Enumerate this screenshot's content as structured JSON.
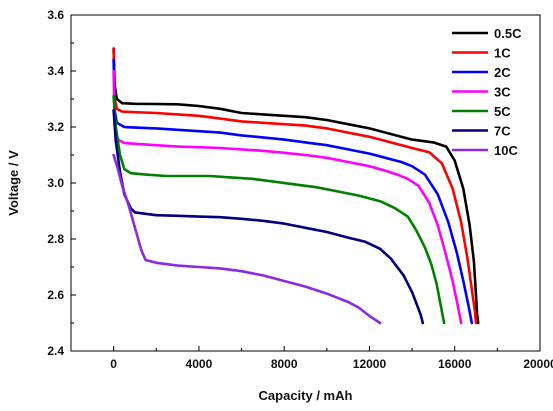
{
  "chart_data": {
    "type": "line",
    "xlabel": "Capacity / mAh",
    "ylabel": "Voltage / V",
    "xlim": [
      -2000,
      20000
    ],
    "ylim": [
      2.4,
      3.6
    ],
    "xticks": [
      0,
      4000,
      8000,
      12000,
      16000,
      20000
    ],
    "yticks": [
      2.4,
      2.6,
      2.8,
      3.0,
      3.2,
      3.4,
      3.6
    ],
    "xtick_labels": [
      "0",
      "4000",
      "8000",
      "12000",
      "16000",
      "20000"
    ],
    "ytick_labels": [
      "2.4",
      "2.6",
      "2.8",
      "3.0",
      "3.2",
      "3.4",
      "3.6"
    ],
    "grid": false,
    "legend_position": "top-right",
    "series": [
      {
        "name": "0.5C",
        "color": "#000000",
        "x": [
          0,
          50,
          150,
          400,
          1000,
          2000,
          3000,
          4000,
          5000,
          6000,
          7000,
          8000,
          9000,
          10000,
          11000,
          12000,
          13000,
          14000,
          15000,
          15600,
          16000,
          16400,
          16700,
          16900,
          17000,
          17050,
          17100
        ],
        "y": [
          3.48,
          3.35,
          3.3,
          3.285,
          3.283,
          3.282,
          3.281,
          3.275,
          3.265,
          3.25,
          3.245,
          3.24,
          3.235,
          3.225,
          3.21,
          3.195,
          3.175,
          3.155,
          3.145,
          3.13,
          3.08,
          2.98,
          2.85,
          2.72,
          2.6,
          2.53,
          2.5
        ]
      },
      {
        "name": "1C",
        "color": "#ff0000",
        "x": [
          0,
          50,
          150,
          400,
          1000,
          2000,
          3000,
          4000,
          5000,
          6000,
          7000,
          8000,
          9000,
          10000,
          11000,
          12000,
          13000,
          14000,
          14800,
          15400,
          15900,
          16300,
          16600,
          16800,
          16950,
          17000
        ],
        "y": [
          3.48,
          3.3,
          3.265,
          3.255,
          3.253,
          3.25,
          3.245,
          3.24,
          3.23,
          3.22,
          3.215,
          3.21,
          3.205,
          3.195,
          3.18,
          3.165,
          3.145,
          3.125,
          3.11,
          3.07,
          2.98,
          2.86,
          2.73,
          2.62,
          2.54,
          2.5
        ]
      },
      {
        "name": "2C",
        "color": "#0000ff",
        "x": [
          0,
          50,
          150,
          500,
          1000,
          2000,
          3000,
          4000,
          5000,
          6000,
          7000,
          8000,
          9000,
          10000,
          11000,
          12000,
          13000,
          13500,
          14000,
          14600,
          15200,
          15700,
          16100,
          16400,
          16650,
          16800
        ],
        "y": [
          3.44,
          3.26,
          3.215,
          3.2,
          3.198,
          3.195,
          3.19,
          3.185,
          3.18,
          3.17,
          3.163,
          3.155,
          3.145,
          3.135,
          3.12,
          3.105,
          3.085,
          3.075,
          3.06,
          3.03,
          2.96,
          2.86,
          2.75,
          2.65,
          2.56,
          2.5
        ]
      },
      {
        "name": "3C",
        "color": "#ff00ff",
        "x": [
          0,
          50,
          200,
          500,
          1000,
          2000,
          3000,
          4000,
          5000,
          6000,
          7000,
          8000,
          9000,
          10000,
          11000,
          12000,
          12700,
          13300,
          13800,
          14300,
          14800,
          15200,
          15600,
          15900,
          16150,
          16300
        ],
        "y": [
          3.4,
          3.2,
          3.155,
          3.143,
          3.14,
          3.135,
          3.13,
          3.128,
          3.125,
          3.12,
          3.115,
          3.108,
          3.1,
          3.09,
          3.075,
          3.06,
          3.045,
          3.03,
          3.015,
          2.99,
          2.93,
          2.85,
          2.74,
          2.65,
          2.56,
          2.5
        ]
      },
      {
        "name": "5C",
        "color": "#008000",
        "x": [
          0,
          100,
          300,
          500,
          800,
          1500,
          2500,
          3500,
          4500,
          5500,
          6500,
          7500,
          8500,
          9500,
          10500,
          11500,
          12500,
          13200,
          13800,
          14200,
          14600,
          14900,
          15150,
          15350,
          15500
        ],
        "y": [
          3.31,
          3.2,
          3.1,
          3.05,
          3.035,
          3.03,
          3.025,
          3.025,
          3.025,
          3.02,
          3.015,
          3.005,
          2.995,
          2.985,
          2.97,
          2.955,
          2.935,
          2.91,
          2.88,
          2.83,
          2.77,
          2.71,
          2.64,
          2.56,
          2.5
        ]
      },
      {
        "name": "7C",
        "color": "#000080",
        "x": [
          0,
          100,
          300,
          500,
          800,
          1000,
          2000,
          3000,
          4000,
          5000,
          6000,
          7000,
          8000,
          9000,
          10000,
          11000,
          11800,
          12500,
          13000,
          13600,
          14000,
          14200,
          14400,
          14500
        ],
        "y": [
          3.26,
          3.15,
          3.04,
          2.96,
          2.91,
          2.895,
          2.885,
          2.883,
          2.88,
          2.878,
          2.872,
          2.865,
          2.855,
          2.84,
          2.825,
          2.805,
          2.79,
          2.765,
          2.73,
          2.67,
          2.61,
          2.57,
          2.53,
          2.5
        ]
      },
      {
        "name": "10C",
        "color": "#8a2be2",
        "x": [
          0,
          200,
          400,
          700,
          1000,
          1300,
          1500,
          2000,
          3000,
          4000,
          5000,
          6000,
          7000,
          8000,
          9000,
          10000,
          10500,
          11000,
          11500,
          12000,
          12500
        ],
        "y": [
          3.1,
          3.05,
          2.99,
          2.92,
          2.84,
          2.76,
          2.725,
          2.715,
          2.705,
          2.7,
          2.695,
          2.685,
          2.67,
          2.65,
          2.63,
          2.605,
          2.59,
          2.575,
          2.555,
          2.525,
          2.5
        ]
      }
    ]
  }
}
